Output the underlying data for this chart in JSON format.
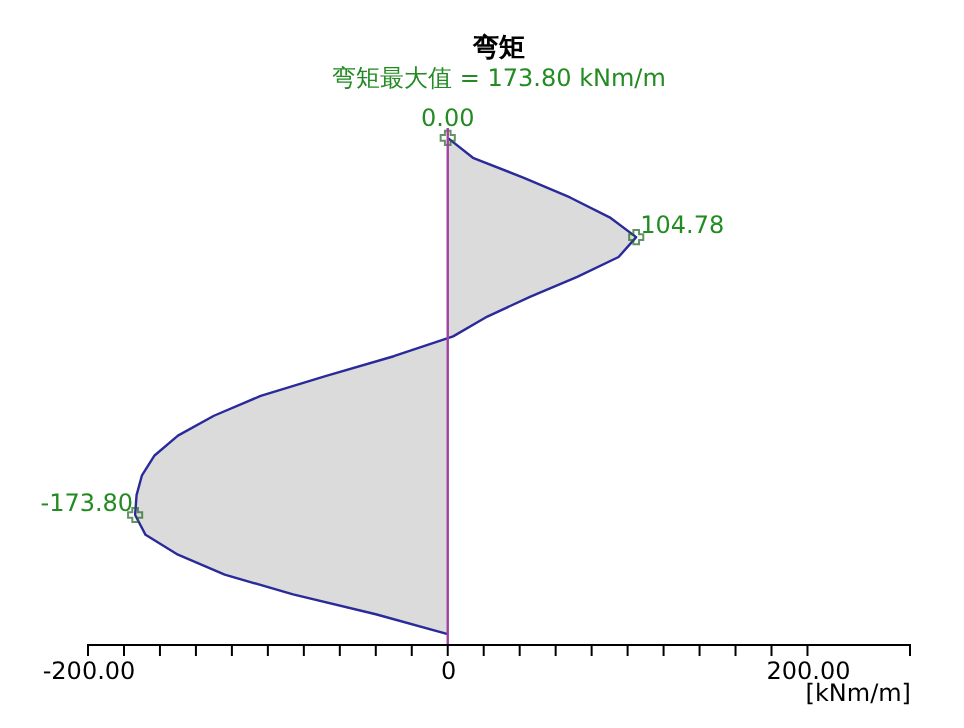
{
  "chart_data": {
    "type": "area",
    "orientation": "horizontal",
    "title": "弯矩",
    "subtitle": "弯矩最大值 = 173.80 kNm/m",
    "xlabel": "[kNm/m]",
    "categories": [
      null,
      null,
      null,
      null,
      null,
      null,
      null,
      null,
      null,
      null,
      null,
      null,
      null,
      null,
      null,
      null,
      null,
      null,
      null,
      null,
      null,
      null,
      null,
      null,
      null,
      null
    ],
    "series": [
      {
        "color": "#2a2a9a",
        "values": [
          0,
          14,
          42,
          68,
          90,
          104.78,
          95,
          72,
          46,
          22,
          3,
          -30,
          -68,
          -104,
          -130,
          -150,
          -163,
          -170,
          -173,
          -173.8,
          -168,
          -150,
          -124,
          -86,
          -40,
          0
        ],
        "value_labels": [
          "0.00",
          null,
          null,
          null,
          null,
          "104.78",
          null,
          null,
          null,
          null,
          null,
          null,
          null,
          null,
          null,
          null,
          null,
          null,
          null,
          "-173.80",
          null,
          null,
          null,
          null,
          null,
          null
        ]
      }
    ],
    "xlim": [
      -200,
      257
    ],
    "xticks": [
      {
        "value": -200,
        "label": "-200.00"
      },
      {
        "value": -180,
        "label": null
      },
      {
        "value": -160,
        "label": null
      },
      {
        "value": -140,
        "label": null
      },
      {
        "value": -120,
        "label": null
      },
      {
        "value": -100,
        "label": null
      },
      {
        "value": -80,
        "label": null
      },
      {
        "value": -60,
        "label": null
      },
      {
        "value": -40,
        "label": null
      },
      {
        "value": -20,
        "label": null
      },
      0,
      {
        "value": 20,
        "label": null
      },
      {
        "value": 40,
        "label": null
      },
      {
        "value": 60,
        "label": null
      },
      {
        "value": 80,
        "label": null
      },
      {
        "value": 100,
        "label": null
      },
      {
        "value": 120,
        "label": null
      },
      {
        "value": 140,
        "label": null
      },
      {
        "value": 160,
        "label": null
      },
      {
        "value": 180,
        "label": null
      },
      {
        "value": 200,
        "label": "200.00"
      },
      {
        "value": 257,
        "label": null
      }
    ],
    "ref_lines": [
      {
        "axis": "x",
        "value": 0,
        "color": "#a040a0"
      }
    ],
    "tick_labels": "x",
    "grid": false
  }
}
